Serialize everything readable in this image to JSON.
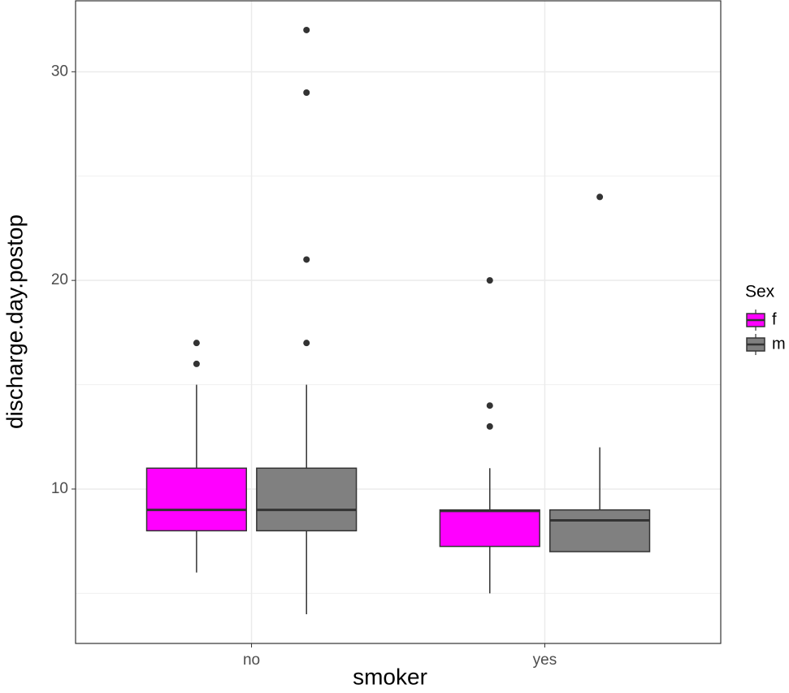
{
  "chart_data": {
    "type": "boxplot",
    "x_label": "smoker",
    "y_label": "discharge.day.postop",
    "categories": [
      "no",
      "yes"
    ],
    "legend_title": "Sex",
    "legend": "right",
    "series": [
      {
        "name": "f",
        "color": "#ff00ff",
        "values": [
          {
            "min": 6,
            "q1": 8,
            "median": 9,
            "q3": 11,
            "max": 15,
            "outliers": [
              16,
              17
            ]
          },
          {
            "min": 5,
            "q1": 7.25,
            "median": 8.95,
            "q3": 9,
            "max": 11,
            "outliers": [
              13,
              14,
              20
            ]
          }
        ]
      },
      {
        "name": "m",
        "color": "#808080",
        "values": [
          {
            "min": 4,
            "q1": 8,
            "median": 9,
            "q3": 11,
            "max": 15,
            "outliers": [
              17,
              21,
              29,
              32
            ]
          },
          {
            "min": 7,
            "q1": 7,
            "median": 8.5,
            "q3": 9,
            "max": 12,
            "outliers": [
              24
            ]
          }
        ]
      }
    ],
    "ylim": [
      2.6,
      33.4
    ],
    "yticks": [
      10,
      20,
      30
    ],
    "minor_yticks": [
      5,
      15,
      25
    ],
    "grid": true
  }
}
